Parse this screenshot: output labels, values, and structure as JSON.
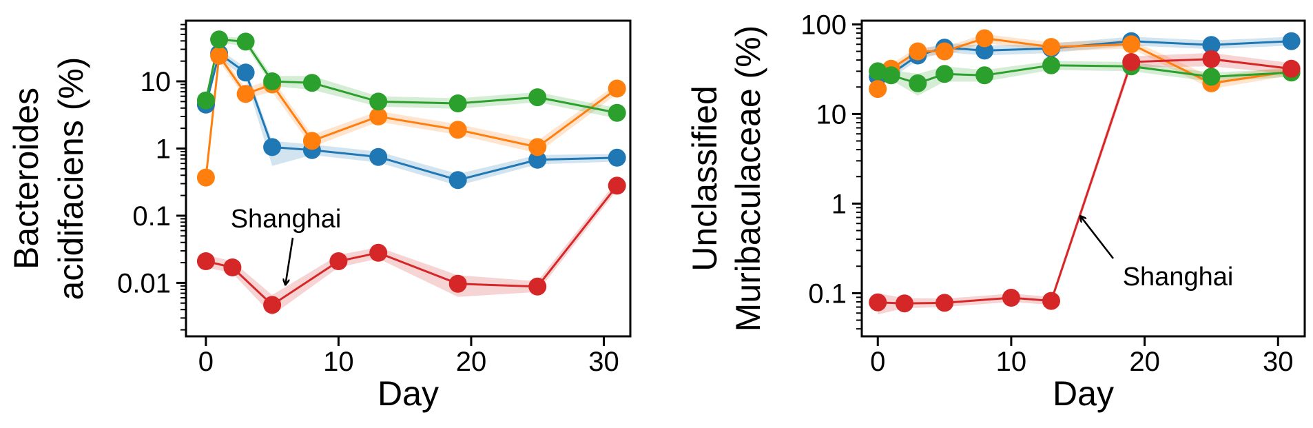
{
  "chart_data": [
    {
      "type": "line",
      "title": "",
      "xlabel": "Day",
      "ylabel_lines": [
        "Bacteroides",
        "acidifaciens (%)"
      ],
      "yscale": "log",
      "xlim": [
        -1.5,
        32
      ],
      "ylim": [
        0.0016,
        80
      ],
      "xticks": [
        0,
        10,
        20,
        30
      ],
      "xtick_labels": [
        "0",
        "10",
        "20",
        "30"
      ],
      "yticks": [
        0.01,
        0.1,
        1,
        10
      ],
      "ytick_labels": [
        "0.01",
        "0.1",
        "1",
        "10"
      ],
      "grid": false,
      "legend": "none",
      "series": [
        {
          "color": "#1f77b4",
          "x": [
            0,
            1,
            3,
            5,
            8,
            13,
            19,
            25,
            31
          ],
          "y": [
            4.5,
            26,
            13.5,
            1.05,
            0.95,
            0.75,
            0.34,
            0.68,
            0.73
          ],
          "band": [
            [
              3.8,
              5.3
            ],
            [
              22,
              30
            ],
            [
              11,
              16
            ],
            [
              0.55,
              1.3
            ],
            [
              0.8,
              1.15
            ],
            [
              0.62,
              0.9
            ],
            [
              0.28,
              0.42
            ],
            [
              0.58,
              0.8
            ],
            [
              0.64,
              0.83
            ]
          ]
        },
        {
          "color": "#ff7f0e",
          "x": [
            0,
            1,
            3,
            5,
            8,
            13,
            19,
            25,
            31
          ],
          "y": [
            0.37,
            24,
            6.5,
            9,
            1.3,
            3.0,
            1.9,
            1.05,
            7.8
          ],
          "band": [
            [
              0.32,
              0.43
            ],
            [
              20,
              28
            ],
            [
              5.5,
              7.8
            ],
            [
              7,
              11
            ],
            [
              1.05,
              1.6
            ],
            [
              2.5,
              3.6
            ],
            [
              1.6,
              2.3
            ],
            [
              0.85,
              1.3
            ],
            [
              6.5,
              9.2
            ]
          ]
        },
        {
          "color": "#2ca02c",
          "x": [
            0,
            1,
            3,
            5,
            8,
            13,
            19,
            25,
            31
          ],
          "y": [
            5.2,
            42,
            39,
            10,
            9.5,
            5.0,
            4.7,
            5.8,
            3.4
          ],
          "band": [
            [
              4.5,
              6.0
            ],
            [
              37,
              47
            ],
            [
              34,
              44
            ],
            [
              8.5,
              12
            ],
            [
              7.5,
              12
            ],
            [
              4.2,
              6.0
            ],
            [
              3.9,
              5.6
            ],
            [
              4.9,
              6.9
            ],
            [
              2.8,
              4.0
            ]
          ]
        },
        {
          "name": "Shanghai",
          "color": "#d62728",
          "x": [
            0,
            2,
            5,
            10,
            13,
            19,
            25,
            31
          ],
          "y": [
            0.021,
            0.017,
            0.0047,
            0.021,
            0.028,
            0.0097,
            0.0088,
            0.28
          ],
          "band": [
            [
              0.017,
              0.026
            ],
            [
              0.014,
              0.021
            ],
            [
              0.0033,
              0.0066
            ],
            [
              0.017,
              0.026
            ],
            [
              0.023,
              0.034
            ],
            [
              0.0062,
              0.013
            ],
            [
              0.0073,
              0.0106
            ],
            [
              0.24,
              0.33
            ]
          ]
        }
      ],
      "annotation": {
        "text": "Shanghai",
        "arrow_to": [
          6,
          0.0095
        ]
      }
    },
    {
      "type": "line",
      "title": "",
      "xlabel": "Day",
      "ylabel_lines": [
        "Unclassified",
        "Muribaculaceae (%)"
      ],
      "yscale": "log",
      "xlim": [
        -1.2,
        32
      ],
      "ylim": [
        0.033,
        110
      ],
      "xticks": [
        0,
        10,
        20,
        30
      ],
      "xtick_labels": [
        "0",
        "10",
        "20",
        "30"
      ],
      "yticks": [
        0.1,
        1,
        10,
        100
      ],
      "ytick_labels": [
        "0.1",
        "1",
        "10",
        "100"
      ],
      "grid": false,
      "legend": "none",
      "series": [
        {
          "color": "#1f77b4",
          "x": [
            0,
            1,
            3,
            5,
            8,
            13,
            19,
            25,
            31
          ],
          "y": [
            26,
            28,
            45,
            55,
            51,
            54,
            65,
            59,
            65
          ],
          "band": [
            [
              23,
              30
            ],
            [
              25,
              32
            ],
            [
              40,
              51
            ],
            [
              49,
              62
            ],
            [
              45,
              58
            ],
            [
              48,
              61
            ],
            [
              58,
              73
            ],
            [
              53,
              66
            ],
            [
              58,
              73
            ]
          ]
        },
        {
          "color": "#ff7f0e",
          "x": [
            0,
            1,
            3,
            5,
            8,
            13,
            19,
            25,
            31
          ],
          "y": [
            19,
            32,
            50,
            50,
            70,
            56,
            60,
            22,
            30
          ],
          "band": [
            [
              16,
              22
            ],
            [
              28,
              36
            ],
            [
              45,
              56
            ],
            [
              45,
              56
            ],
            [
              62,
              78
            ],
            [
              50,
              63
            ],
            [
              54,
              67
            ],
            [
              19,
              26
            ],
            [
              27,
              34
            ]
          ]
        },
        {
          "color": "#2ca02c",
          "x": [
            0,
            1,
            3,
            5,
            8,
            13,
            19,
            25,
            31
          ],
          "y": [
            30,
            27,
            22,
            28,
            27,
            35,
            34,
            26,
            29
          ],
          "band": [
            [
              26,
              34
            ],
            [
              24,
              31
            ],
            [
              16,
              28
            ],
            [
              23,
              34
            ],
            [
              23,
              31
            ],
            [
              31,
              39
            ],
            [
              30,
              38
            ],
            [
              23,
              29
            ],
            [
              26,
              32
            ]
          ]
        },
        {
          "name": "Shanghai",
          "color": "#d62728",
          "x": [
            0,
            2,
            5,
            10,
            13,
            19,
            25,
            31
          ],
          "y": [
            0.079,
            0.077,
            0.078,
            0.089,
            0.082,
            38,
            41,
            32
          ],
          "band": [
            [
              0.058,
              0.1
            ],
            [
              0.068,
              0.088
            ],
            [
              0.07,
              0.087
            ],
            [
              0.08,
              0.099
            ],
            [
              0.074,
              0.091
            ],
            [
              33,
              44
            ],
            [
              34,
              48
            ],
            [
              28,
              37
            ]
          ]
        }
      ],
      "annotation": {
        "text": "Shanghai",
        "arrow_to": [
          15.2,
          0.72
        ]
      }
    }
  ]
}
